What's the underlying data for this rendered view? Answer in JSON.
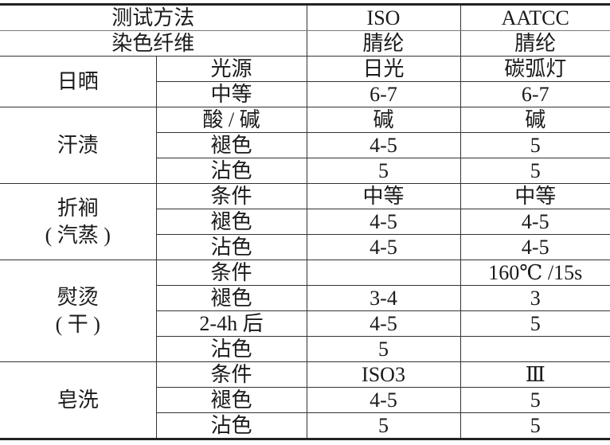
{
  "header": {
    "method_label": "测试方法",
    "fiber_label": "染色纤维",
    "standards": [
      "ISO",
      "AATCC"
    ],
    "fibers": [
      "腈纶",
      "腈纶"
    ]
  },
  "groups": [
    {
      "label": "日晒",
      "rows": [
        {
          "item": "光源",
          "iso": "日光",
          "aatcc": "碳弧灯"
        },
        {
          "item": "中等",
          "iso": "6-7",
          "aatcc": "6-7"
        }
      ]
    },
    {
      "label": "汗渍",
      "rows": [
        {
          "item": "酸 / 碱",
          "iso": "碱",
          "aatcc": "碱"
        },
        {
          "item": "褪色",
          "iso": "4-5",
          "aatcc": "5"
        },
        {
          "item": "沾色",
          "iso": "5",
          "aatcc": "5"
        }
      ]
    },
    {
      "label": "折裥",
      "sublabel": "( 汽蒸 )",
      "rows": [
        {
          "item": "条件",
          "iso": "中等",
          "aatcc": "中等"
        },
        {
          "item": "褪色",
          "iso": "4-5",
          "aatcc": "4-5"
        },
        {
          "item": "沾色",
          "iso": "4-5",
          "aatcc": "4-5"
        }
      ]
    },
    {
      "label": "熨烫",
      "sublabel": "( 干 )",
      "rows": [
        {
          "item": "条件",
          "iso": "",
          "aatcc": "160℃ /15s"
        },
        {
          "item": "褪色",
          "iso": "3-4",
          "aatcc": "3"
        },
        {
          "item": "2-4h 后",
          "iso": "4-5",
          "aatcc": "5"
        },
        {
          "item": "沾色",
          "iso": "5",
          "aatcc": ""
        }
      ]
    },
    {
      "label": "皂洗",
      "rows": [
        {
          "item": "条件",
          "iso": "ISO3",
          "aatcc": "Ⅲ"
        },
        {
          "item": "褪色",
          "iso": "4-5",
          "aatcc": "5"
        },
        {
          "item": "沾色",
          "iso": "5",
          "aatcc": "5"
        }
      ]
    }
  ]
}
